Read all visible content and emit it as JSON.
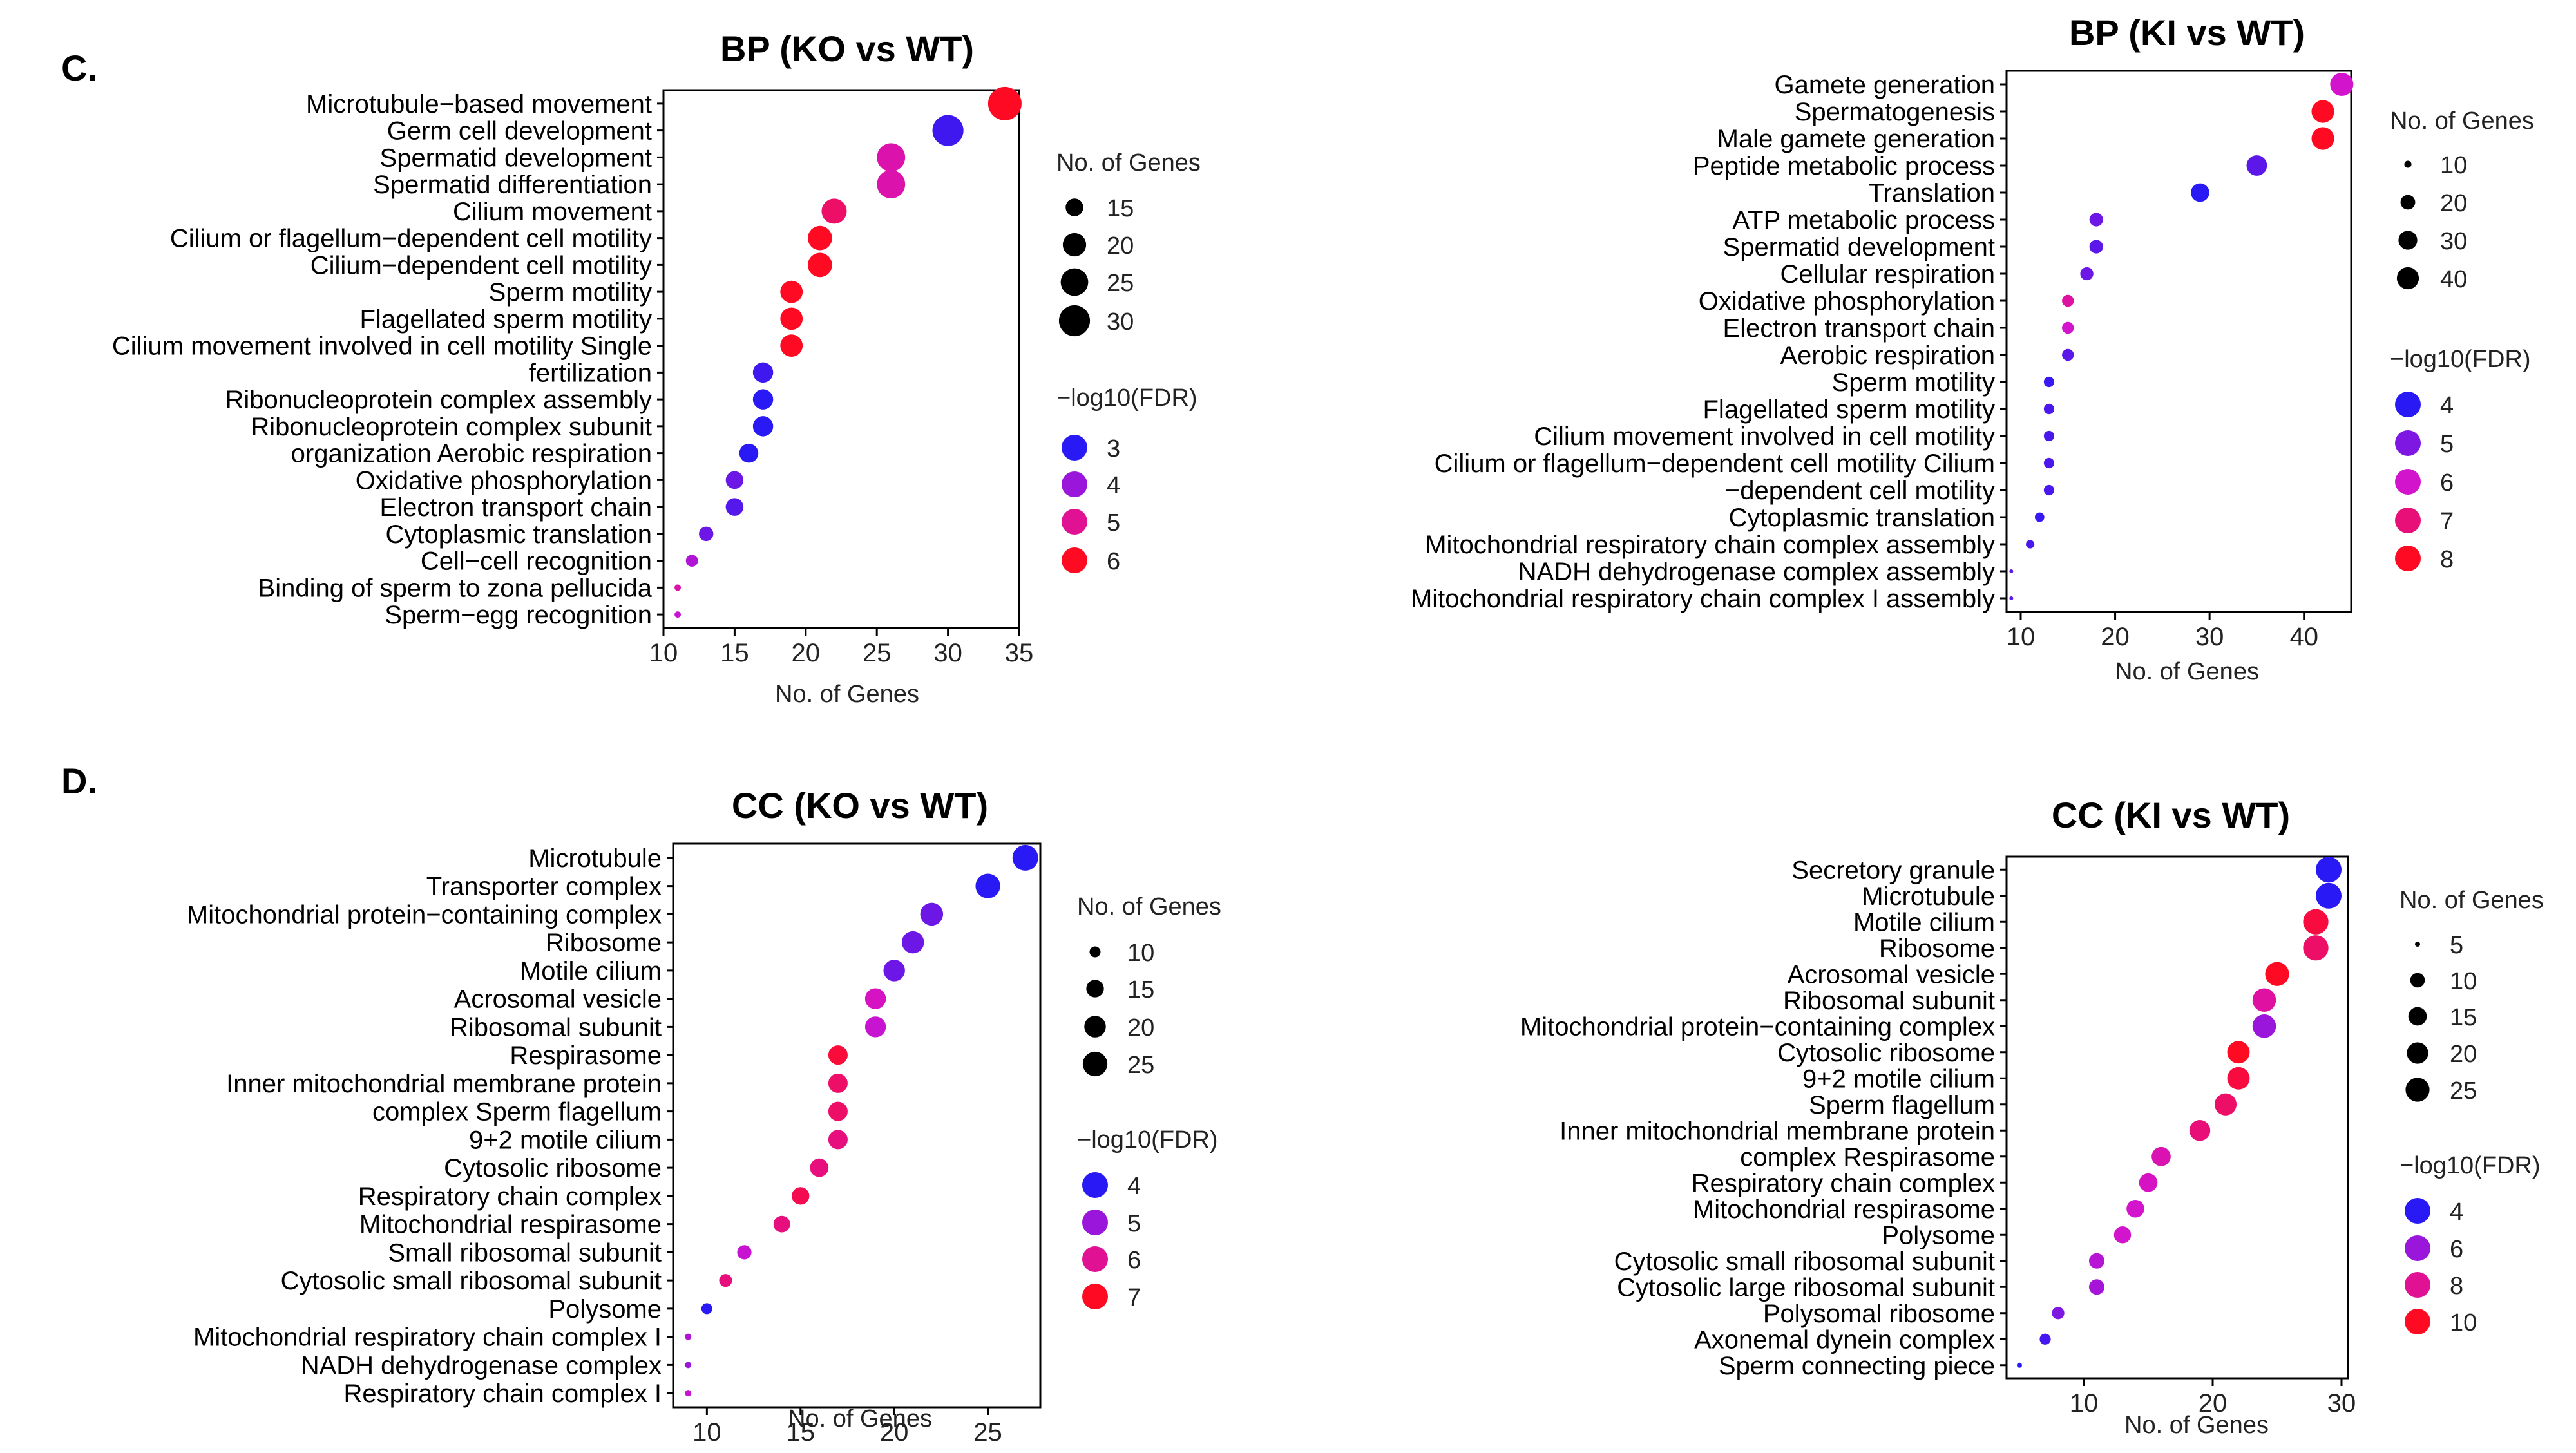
{
  "panel_labels": {
    "c": "C.",
    "d": "D."
  },
  "legend_titles": {
    "size": "No. of Genes",
    "color": "−log10(FDR)"
  },
  "chart_data": [
    {
      "id": "bp_ko",
      "type": "scatter",
      "title": "BP (KO vs WT)",
      "xlabel": "No. of Genes",
      "ylabel": "",
      "xlim": [
        10,
        35
      ],
      "xticks": [
        10,
        15,
        20,
        25,
        30,
        35
      ],
      "terms": [
        "Microtubule−based movement",
        "Germ cell development",
        "Spermatid development",
        "Spermatid differentiation",
        "Cilium movement",
        "Cilium or flagellum−dependent cell motility",
        "Cilium−dependent cell motility",
        "Sperm motility",
        "Flagellated sperm motility",
        "Cilium movement involved in cell motility Single",
        "fertilization",
        "Ribonucleoprotein complex assembly",
        "Ribonucleoprotein complex subunit",
        "organization Aerobic respiration",
        "Oxidative phosphorylation",
        "Electron transport chain",
        "Cytoplasmic translation",
        "Cell−cell recognition",
        "Binding of sperm to zona pellucida",
        "Sperm−egg recognition"
      ],
      "genes": [
        34,
        30,
        26,
        26,
        22,
        21,
        21,
        19,
        19,
        19,
        17,
        17,
        17,
        16,
        15,
        15,
        13,
        12,
        11,
        11
      ],
      "neglog10_fdr": [
        6.2,
        3.2,
        4.8,
        4.8,
        5.4,
        6.0,
        6.0,
        6.0,
        6.0,
        6.0,
        3.2,
        3.0,
        2.6,
        2.4,
        3.6,
        3.4,
        3.6,
        4.2,
        4.8,
        4.4
      ],
      "size_legend": [
        15,
        20,
        25,
        30
      ],
      "color_legend": [
        3,
        4,
        5,
        6
      ]
    },
    {
      "id": "bp_ki",
      "type": "scatter",
      "title": "BP (KI vs WT)",
      "xlabel": "No. of Genes",
      "ylabel": "",
      "xlim": [
        8.5,
        45
      ],
      "xticks": [
        10,
        20,
        30,
        40
      ],
      "terms": [
        "Gamete generation",
        "Spermatogenesis",
        "Male gamete generation",
        "Peptide metabolic process",
        "Translation",
        "ATP metabolic process",
        "Spermatid development",
        "Cellular respiration",
        "Oxidative phosphorylation",
        "Electron transport chain",
        "Aerobic respiration",
        "Sperm motility",
        "Flagellated sperm motility",
        "Cilium movement involved in cell motility",
        "Cilium or flagellum−dependent cell motility Cilium",
        "−dependent cell motility",
        "Cytoplasmic translation",
        "Mitochondrial respiratory chain complex assembly",
        "NADH dehydrogenase complex assembly",
        "Mitochondrial respiratory chain complex I assembly"
      ],
      "genes": [
        44,
        42,
        42,
        35,
        29,
        18,
        18,
        17,
        15,
        15,
        15,
        13,
        13,
        13,
        13,
        13,
        12,
        11,
        9,
        9
      ],
      "neglog10_fdr": [
        6.0,
        8.0,
        8.0,
        4.6,
        3.8,
        4.8,
        4.6,
        4.8,
        6.5,
        6.0,
        4.6,
        4.2,
        4.4,
        4.4,
        4.4,
        4.4,
        4.2,
        4.4,
        4.6,
        4.6
      ],
      "size_legend": [
        10,
        20,
        30,
        40
      ],
      "color_legend": [
        4,
        5,
        6,
        7,
        8
      ]
    },
    {
      "id": "cc_ko",
      "type": "scatter",
      "title": "CC (KO vs WT)",
      "xlabel": "No. of Genes",
      "ylabel": "",
      "xlim": [
        8.2,
        27.8
      ],
      "xticks": [
        10,
        15,
        20,
        25
      ],
      "terms": [
        "Microtubule",
        "Transporter complex",
        "Mitochondrial protein−containing complex",
        "Ribosome",
        "Motile cilium",
        "Acrosomal vesicle",
        "Ribosomal subunit",
        "Respirasome",
        "Inner mitochondrial membrane protein",
        "complex Sperm flagellum",
        "9+2 motile cilium",
        "Cytosolic ribosome",
        "Respiratory chain complex",
        "Mitochondrial respirasome",
        "Small ribosomal subunit",
        "Cytosolic small ribosomal subunit",
        "Polysome",
        "Mitochondrial respiratory chain complex I",
        "NADH dehydrogenase complex",
        "Respiratory chain complex I"
      ],
      "genes": [
        27,
        25,
        22,
        21,
        20,
        19,
        19,
        17,
        17,
        17,
        17,
        16,
        15,
        14,
        12,
        11,
        10,
        9,
        9,
        9
      ],
      "neglog10_fdr": [
        3.8,
        3.6,
        4.6,
        4.6,
        4.6,
        5.6,
        5.4,
        6.8,
        6.4,
        6.4,
        6.2,
        6.2,
        6.6,
        6.2,
        5.4,
        6.2,
        3.8,
        5.2,
        5.0,
        5.4
      ],
      "size_legend": [
        10,
        15,
        20,
        25
      ],
      "color_legend": [
        4,
        5,
        6,
        7
      ]
    },
    {
      "id": "cc_ki",
      "type": "scatter",
      "title": "CC (KI vs WT)",
      "xlabel": "No. of Genes",
      "ylabel": "",
      "xlim": [
        4,
        30.5
      ],
      "xticks": [
        10,
        20,
        30
      ],
      "terms": [
        "Secretory granule",
        "Microtubule",
        "Motile cilium",
        "Ribosome",
        "Acrosomal vesicle",
        "Ribosomal subunit",
        "Mitochondrial protein−containing complex",
        "Cytosolic ribosome",
        "9+2 motile cilium",
        "Sperm flagellum",
        "Inner mitochondrial membrane protein",
        "complex Respirasome",
        "Respiratory chain complex",
        "Mitochondrial respirasome",
        "Polysome",
        "Cytosolic small ribosomal subunit",
        "Cytosolic large ribosomal subunit",
        "Polysomal ribosome",
        "Axonemal dynein complex",
        "Sperm connecting piece"
      ],
      "genes": [
        29,
        29,
        28,
        28,
        25,
        24,
        24,
        22,
        22,
        21,
        19,
        16,
        15,
        14,
        13,
        11,
        11,
        8,
        7,
        5
      ],
      "neglog10_fdr": [
        3.5,
        3.5,
        9.5,
        8.8,
        10.0,
        7.8,
        6.0,
        10.0,
        9.5,
        8.8,
        8.5,
        7.5,
        7.2,
        7.0,
        7.0,
        6.5,
        6.2,
        5.5,
        4.5,
        4.0
      ],
      "size_legend": [
        5,
        10,
        15,
        20,
        25
      ],
      "color_legend": [
        4,
        6,
        8,
        10
      ]
    }
  ]
}
